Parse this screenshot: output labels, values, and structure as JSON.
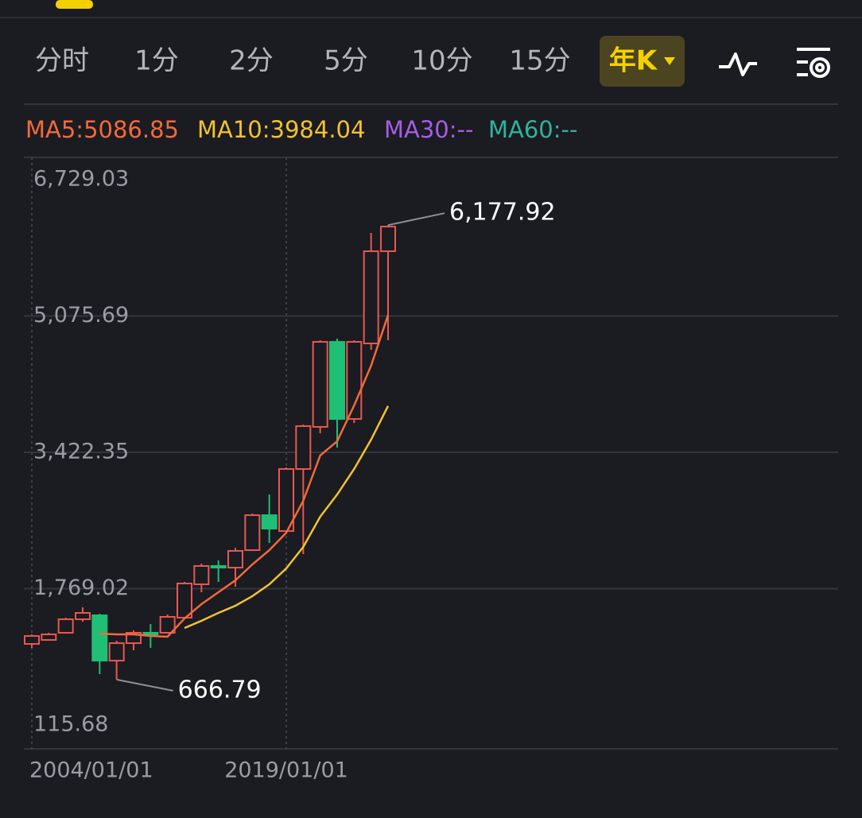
{
  "tabs": [
    "分时",
    "1分",
    "2分",
    "5分",
    "10分",
    "15分",
    "年K"
  ],
  "chart_data": {
    "type": "candlestick",
    "legend": [
      {
        "text": "MA5:5086.85",
        "color": "#f26b3a"
      },
      {
        "text": "MA10:3984.04",
        "color": "#f2c230"
      },
      {
        "text": "MA30:--",
        "color": "#a55ee6"
      },
      {
        "text": "MA60:--",
        "color": "#2fb39c"
      }
    ],
    "categories": [
      "2004/01/01",
      null,
      null,
      null,
      null,
      null,
      null,
      null,
      null,
      null,
      null,
      null,
      null,
      null,
      null,
      "2019/01/01",
      null,
      null,
      null,
      null,
      null,
      null
    ],
    "open": [
      1099,
      1147,
      1234,
      1398,
      1446,
      896,
      1108,
      1234,
      1234,
      1417,
      1822,
      2044,
      2024,
      2236,
      2660,
      2468,
      3220,
      3731,
      4762,
      3827,
      4743,
      5861
    ],
    "close": [
      1195,
      1215,
      1398,
      1475,
      896,
      1108,
      1234,
      1215,
      1427,
      1832,
      2044,
      2034,
      2227,
      2660,
      2497,
      3220,
      3740,
      4762,
      3827,
      4762,
      5861,
      6160
    ],
    "high": [
      1215,
      1234,
      1417,
      1543,
      1465,
      1137,
      1263,
      1340,
      1456,
      1851,
      2073,
      2111,
      2265,
      2680,
      2911,
      3239,
      3759,
      4782,
      4801,
      4782,
      6083,
      6177.92
    ],
    "low": [
      1051,
      1138,
      1224,
      1369,
      733,
      666.79,
      1022,
      1051,
      1224,
      1407,
      1726,
      1851,
      1793,
      2227,
      2323,
      2448,
      2188,
      3653,
      3480,
      3779,
      4666,
      4782
    ],
    "up_color": "#e8584f",
    "down_color": "#1fbf75",
    "series": [
      {
        "color": "#f26b3a",
        "values": [
          null,
          null,
          null,
          null,
          1224,
          1215,
          1215,
          1195,
          1186,
          1407,
          1581,
          1726,
          1870,
          2063,
          2236,
          2448,
          2834,
          3384,
          3557,
          3991,
          4473,
          5086.85
        ]
      },
      {
        "color": "#f2c230",
        "values": [
          null,
          null,
          null,
          null,
          null,
          null,
          null,
          null,
          null,
          1292,
          1379,
          1475,
          1562,
          1678,
          1822,
          2015,
          2275,
          2641,
          2911,
          3220,
          3576,
          3984.04
        ]
      }
    ],
    "annotations": [
      {
        "text": "6,177.92",
        "value": 6177.92
      },
      {
        "text": "666.79",
        "value": 666.79
      }
    ],
    "ylim": [
      115.68,
      6729.03
    ],
    "yticks": [
      {
        "value": 6729.03,
        "label": "6,729.03"
      },
      {
        "value": 5075.69,
        "label": "5,075.69"
      },
      {
        "value": 3422.35,
        "label": "3,422.35"
      },
      {
        "value": 1769.02,
        "label": "1,769.02"
      },
      {
        "value": 115.68,
        "label": "115.68"
      }
    ],
    "grid": true
  }
}
